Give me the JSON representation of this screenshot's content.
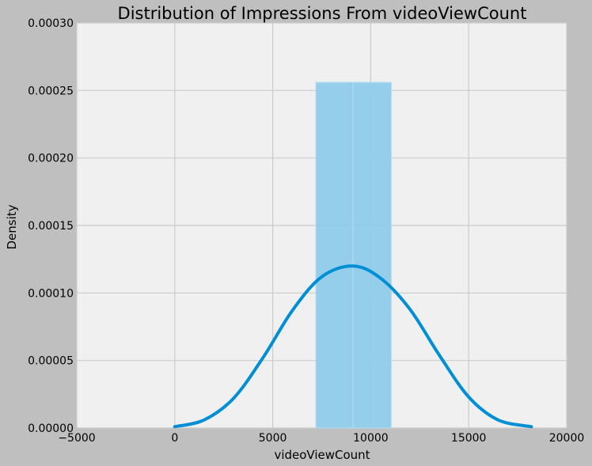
{
  "chart_data": {
    "type": "histogram",
    "title": "Distribution of Impressions From videoViewCount",
    "xlabel": "videoViewCount",
    "ylabel": "Density",
    "xlim": [
      -5000,
      20000
    ],
    "ylim": [
      0,
      0.0003
    ],
    "x_ticks": [
      "−5000",
      "0",
      "5000",
      "10000",
      "15000",
      "20000"
    ],
    "y_ticks": [
      "0.00000",
      "0.00005",
      "0.00010",
      "0.00015",
      "0.00020",
      "0.00025",
      "0.00030"
    ],
    "grid": true,
    "bins": [
      {
        "x0": 7200,
        "x1": 9100,
        "density": 0.000256
      },
      {
        "x0": 9100,
        "x1": 11050,
        "density": 0.000256
      }
    ],
    "kde": {
      "x": [
        0,
        1500,
        3000,
        4500,
        6000,
        7500,
        9100,
        10500,
        12000,
        13500,
        15000,
        16500,
        18200
      ],
      "y": [
        1e-06,
        6e-06,
        2.2e-05,
        5.2e-05,
        8.7e-05,
        0.000112,
        0.00012,
        0.000111,
        8.8e-05,
        5.4e-05,
        2.3e-05,
        6e-06,
        1e-06
      ]
    },
    "colors": {
      "kde": "#008fd5",
      "bars": "#8fcbe9",
      "plot_bg": "#f0f0f0",
      "figure_bg": "#bfbfbf",
      "grid": "#cbcbcb"
    }
  }
}
